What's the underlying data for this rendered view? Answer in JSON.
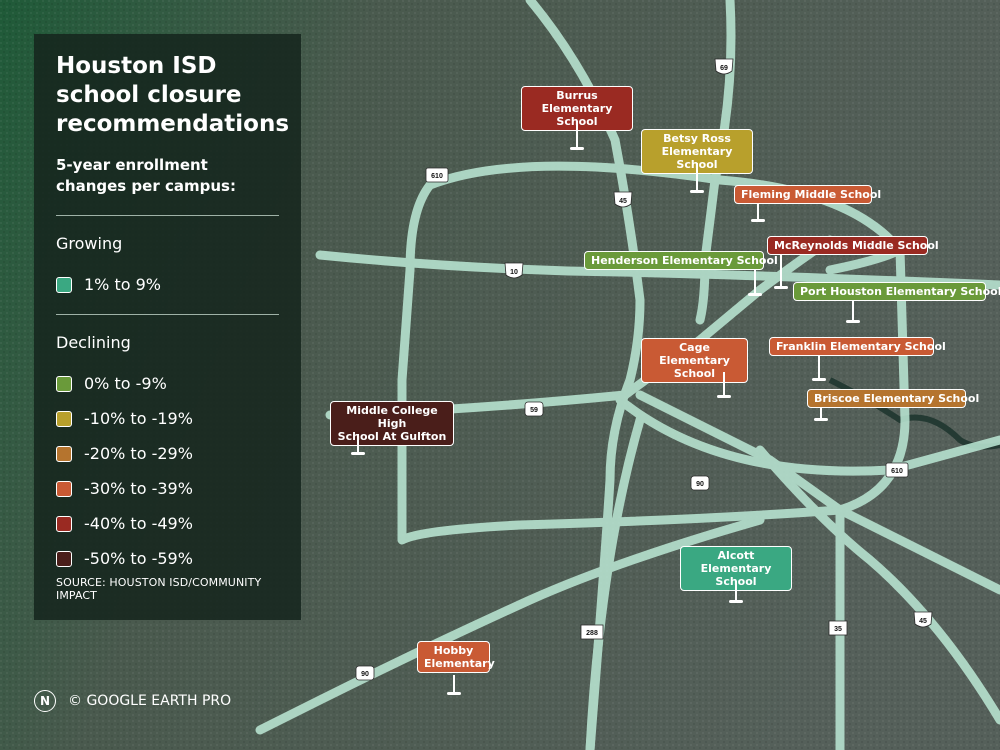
{
  "title": "Houston ISD school closure recommendations",
  "subtitle": "5-year enrollment changes per campus:",
  "legend": {
    "growing_heading": "Growing",
    "growing_items": [
      {
        "label": "1% to 9%",
        "color": "#3aa882"
      }
    ],
    "declining_heading": "Declining",
    "declining_items": [
      {
        "label": "0% to -9%",
        "color": "#6a9a3a"
      },
      {
        "label": "-10% to -19%",
        "color": "#b8a02c"
      },
      {
        "label": "-20% to -29%",
        "color": "#b5742e"
      },
      {
        "label": "-30% to -39%",
        "color": "#c95a34"
      },
      {
        "label": "-40% to -49%",
        "color": "#9a2a22"
      },
      {
        "label": "-50% to -59%",
        "color": "#4a1e1a"
      }
    ]
  },
  "source": "SOURCE: HOUSTON ISD/COMMUNITY IMPACT",
  "credit": "© GOOGLE EARTH PRO",
  "credit_logo": "N",
  "highway_shields": [
    {
      "label": "69",
      "type": "interstate"
    },
    {
      "label": "610",
      "type": "loop"
    },
    {
      "label": "45",
      "type": "interstate"
    },
    {
      "label": "10",
      "type": "interstate"
    },
    {
      "label": "59",
      "type": "us"
    },
    {
      "label": "90",
      "type": "us"
    },
    {
      "label": "610",
      "type": "loop"
    },
    {
      "label": "288",
      "type": "state"
    },
    {
      "label": "35",
      "type": "state"
    },
    {
      "label": "45",
      "type": "interstate"
    },
    {
      "label": "90",
      "type": "us"
    }
  ],
  "schools": [
    {
      "name": "Burrus\nElementary School",
      "category": "-40% to -49%",
      "color": "#9a2a22"
    },
    {
      "name": "Betsy Ross\nElementary School",
      "category": "-10% to -19%",
      "color": "#b8a02c"
    },
    {
      "name": "Fleming Middle School",
      "category": "-30% to -39%",
      "color": "#c95a34"
    },
    {
      "name": "McReynolds Middle School",
      "category": "-40% to -49%",
      "color": "#9a2a22"
    },
    {
      "name": "Henderson Elementary School",
      "category": "0% to -9%",
      "color": "#6a9a3a"
    },
    {
      "name": "Port Houston Elementary School",
      "category": "0% to -9%",
      "color": "#6a9a3a"
    },
    {
      "name": "Cage Elementary\nSchool",
      "category": "-30% to -39%",
      "color": "#c95a34"
    },
    {
      "name": "Franklin Elementary School",
      "category": "-30% to -39%",
      "color": "#c95a34"
    },
    {
      "name": "Briscoe Elementary School",
      "category": "-20% to -29%",
      "color": "#b5742e"
    },
    {
      "name": "Middle College High\nSchool At Gulfton",
      "category": "-50% to -59%",
      "color": "#4a1e1a"
    },
    {
      "name": "Alcott Elementary\nSchool",
      "category": "1% to 9%",
      "color": "#3aa882"
    },
    {
      "name": "Hobby\nElementary",
      "category": "-30% to -39%",
      "color": "#c95a34"
    }
  ]
}
